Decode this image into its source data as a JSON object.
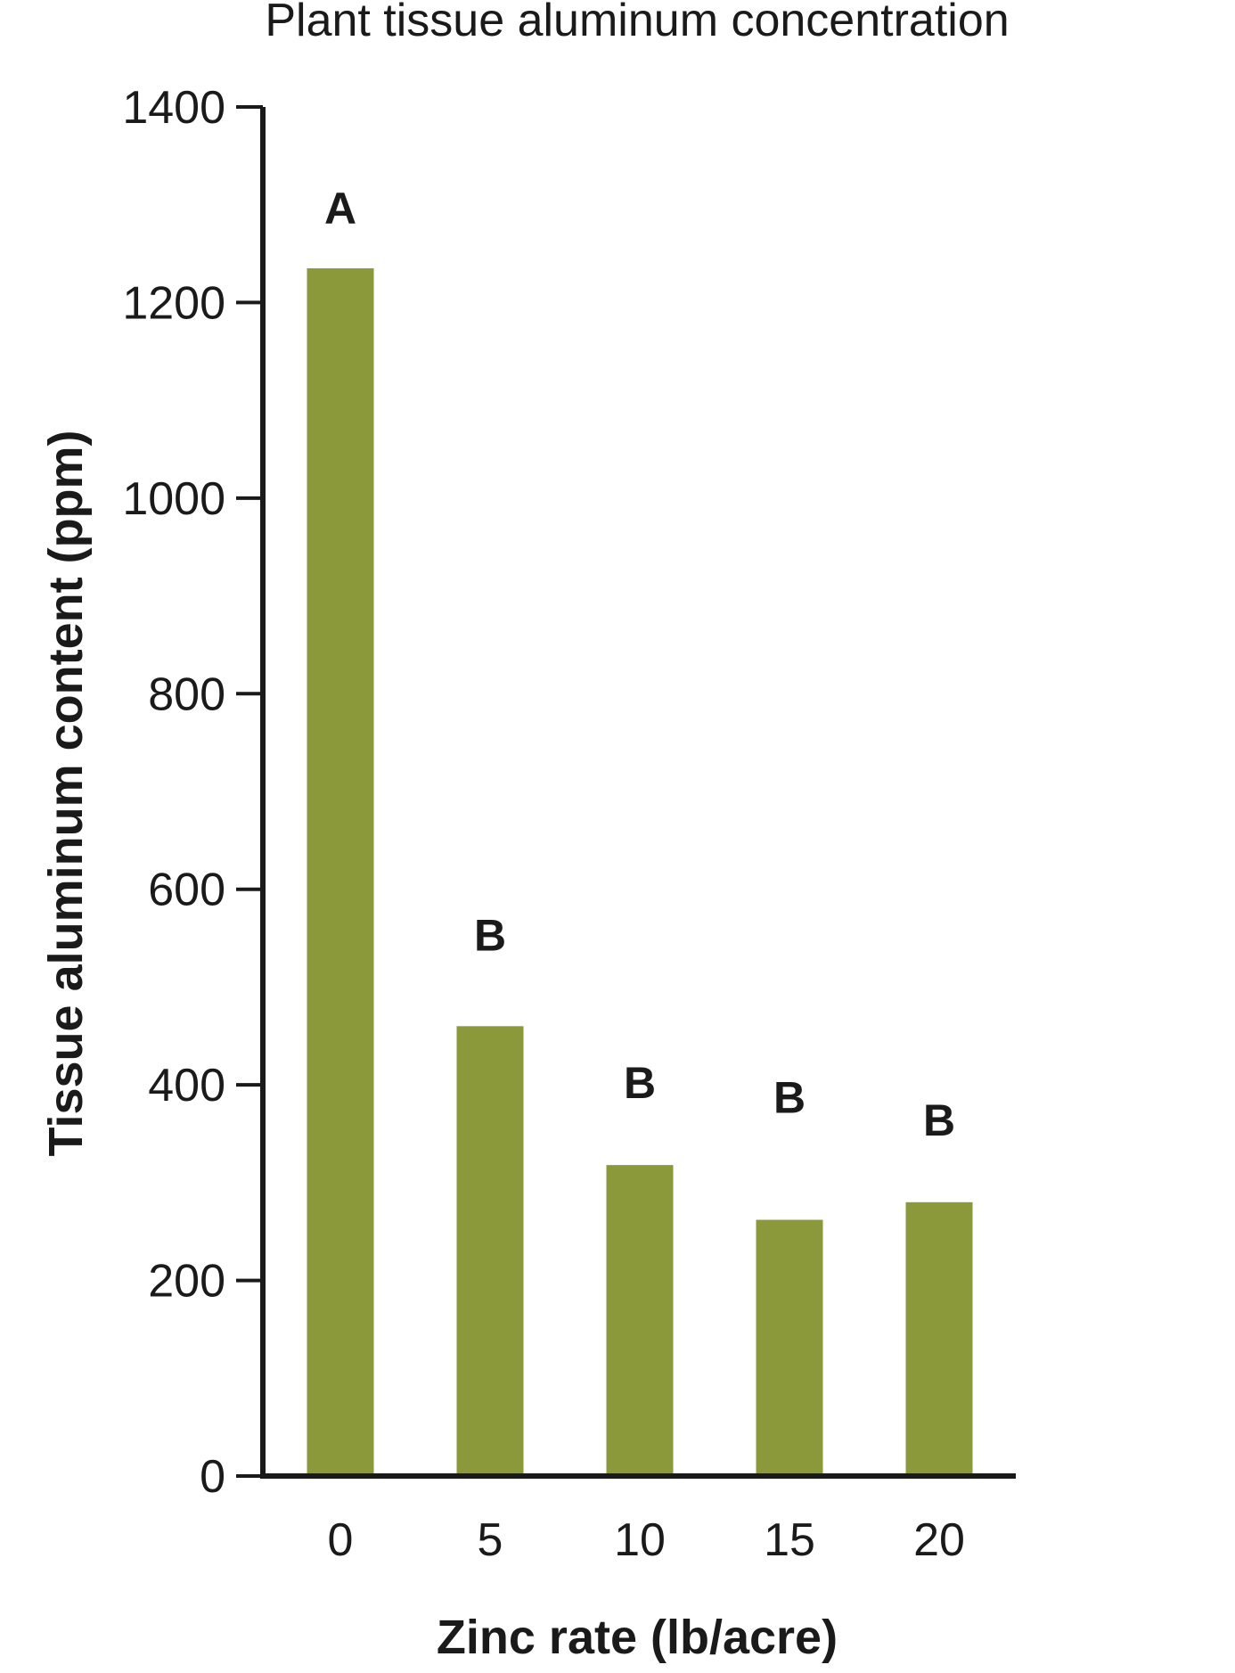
{
  "chart_data": {
    "type": "bar",
    "title": "Plant tissue aluminum concentration",
    "xlabel": "Zinc rate (lb/acre)",
    "ylabel": "Tissue aluminum content (ppm)",
    "categories": [
      "0",
      "5",
      "10",
      "15",
      "20"
    ],
    "values": [
      1235,
      460,
      318,
      262,
      280
    ],
    "letters": [
      "A",
      "B",
      "B",
      "B",
      "B"
    ],
    "ylim": [
      0,
      1400
    ],
    "yticks": [
      0,
      200,
      400,
      600,
      800,
      1000,
      1200,
      1400
    ],
    "grid": false,
    "bar_color": "#8c993b",
    "axis_color": "#1a1a1a"
  }
}
